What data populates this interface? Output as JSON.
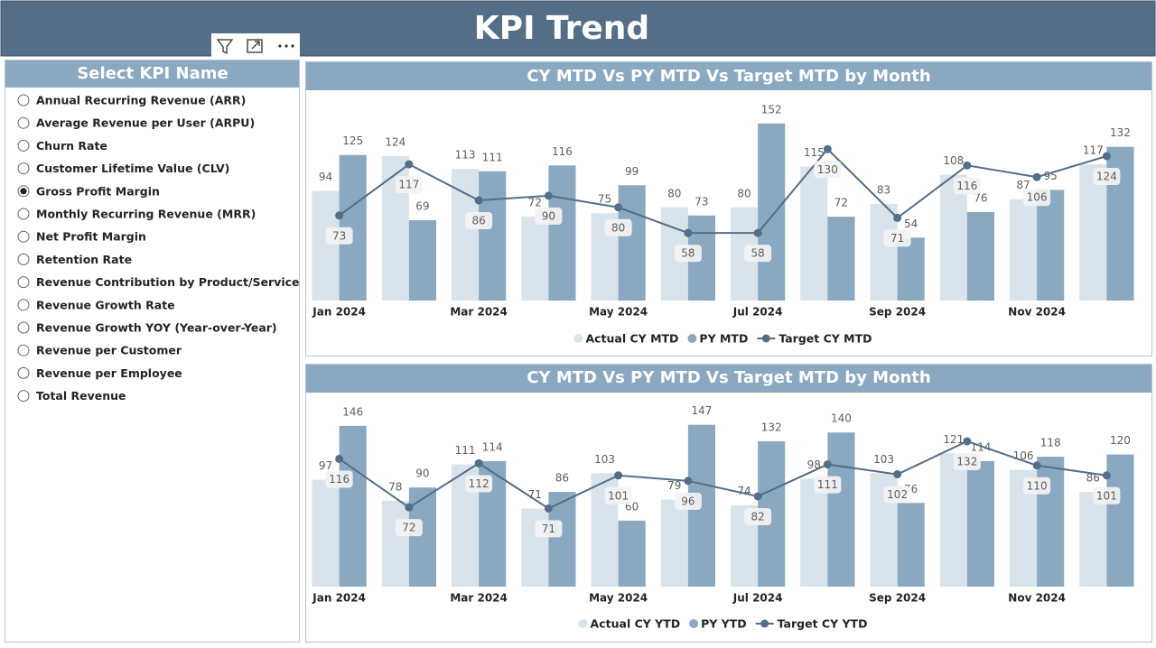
{
  "header": {
    "title": "KPI Trend"
  },
  "slicer": {
    "title": "Select KPI Name",
    "items": [
      "Annual Recurring Revenue (ARR)",
      "Average Revenue per User (ARPU)",
      "Churn Rate",
      "Customer Lifetime Value (CLV)",
      "Gross Profit Margin",
      "Monthly Recurring Revenue (MRR)",
      "Net Profit Margin",
      "Retention Rate",
      "Revenue Contribution by Product/Service",
      "Revenue Growth Rate",
      "Revenue Growth YOY (Year-over-Year)",
      "Revenue per Customer",
      "Revenue per Employee",
      "Total Revenue"
    ],
    "selected": 4
  },
  "chart_data": [
    {
      "type": "combo",
      "title": "CY MTD Vs PY MTD Vs Target MTD by Month",
      "categories": [
        "Jan 2024",
        null,
        "Mar 2024",
        null,
        "May 2024",
        null,
        "Jul 2024",
        null,
        "Sep 2024",
        null,
        "Nov 2024",
        null
      ],
      "ylim": [
        0,
        155
      ],
      "series": [
        {
          "name": "Actual CY MTD",
          "type": "bar",
          "color": "#d9e3eb",
          "values": [
            94,
            124,
            113,
            72,
            75,
            80,
            80,
            115,
            83,
            108,
            87,
            117
          ]
        },
        {
          "name": "PY MTD",
          "type": "bar",
          "color": "#8aa9c1",
          "values": [
            125,
            69,
            111,
            116,
            99,
            73,
            152,
            72,
            54,
            76,
            95,
            132
          ]
        },
        {
          "name": "Target CY MTD",
          "type": "line",
          "color": "#546e87",
          "values": [
            73,
            117,
            86,
            90,
            80,
            58,
            58,
            130,
            71,
            116,
            106,
            124
          ]
        }
      ]
    },
    {
      "type": "combo",
      "title": "CY MTD Vs PY MTD Vs Target MTD by Month",
      "categories": [
        "Jan 2024",
        null,
        "Mar 2024",
        null,
        "May 2024",
        null,
        "Jul 2024",
        null,
        "Sep 2024",
        null,
        "Nov 2024",
        null
      ],
      "ylim": [
        0,
        150
      ],
      "series": [
        {
          "name": "Actual CY YTD",
          "type": "bar",
          "color": "#d9e3eb",
          "values": [
            97,
            78,
            111,
            71,
            103,
            79,
            74,
            98,
            103,
            121,
            106,
            86
          ]
        },
        {
          "name": "PY YTD",
          "type": "bar",
          "color": "#8aa9c1",
          "values": [
            146,
            90,
            114,
            86,
            60,
            147,
            132,
            140,
            76,
            114,
            118,
            120
          ]
        },
        {
          "name": "Target CY YTD",
          "type": "line",
          "color": "#546e87",
          "values": [
            116,
            72,
            112,
            71,
            101,
            96,
            82,
            111,
            102,
            132,
            110,
            101
          ]
        }
      ]
    }
  ]
}
